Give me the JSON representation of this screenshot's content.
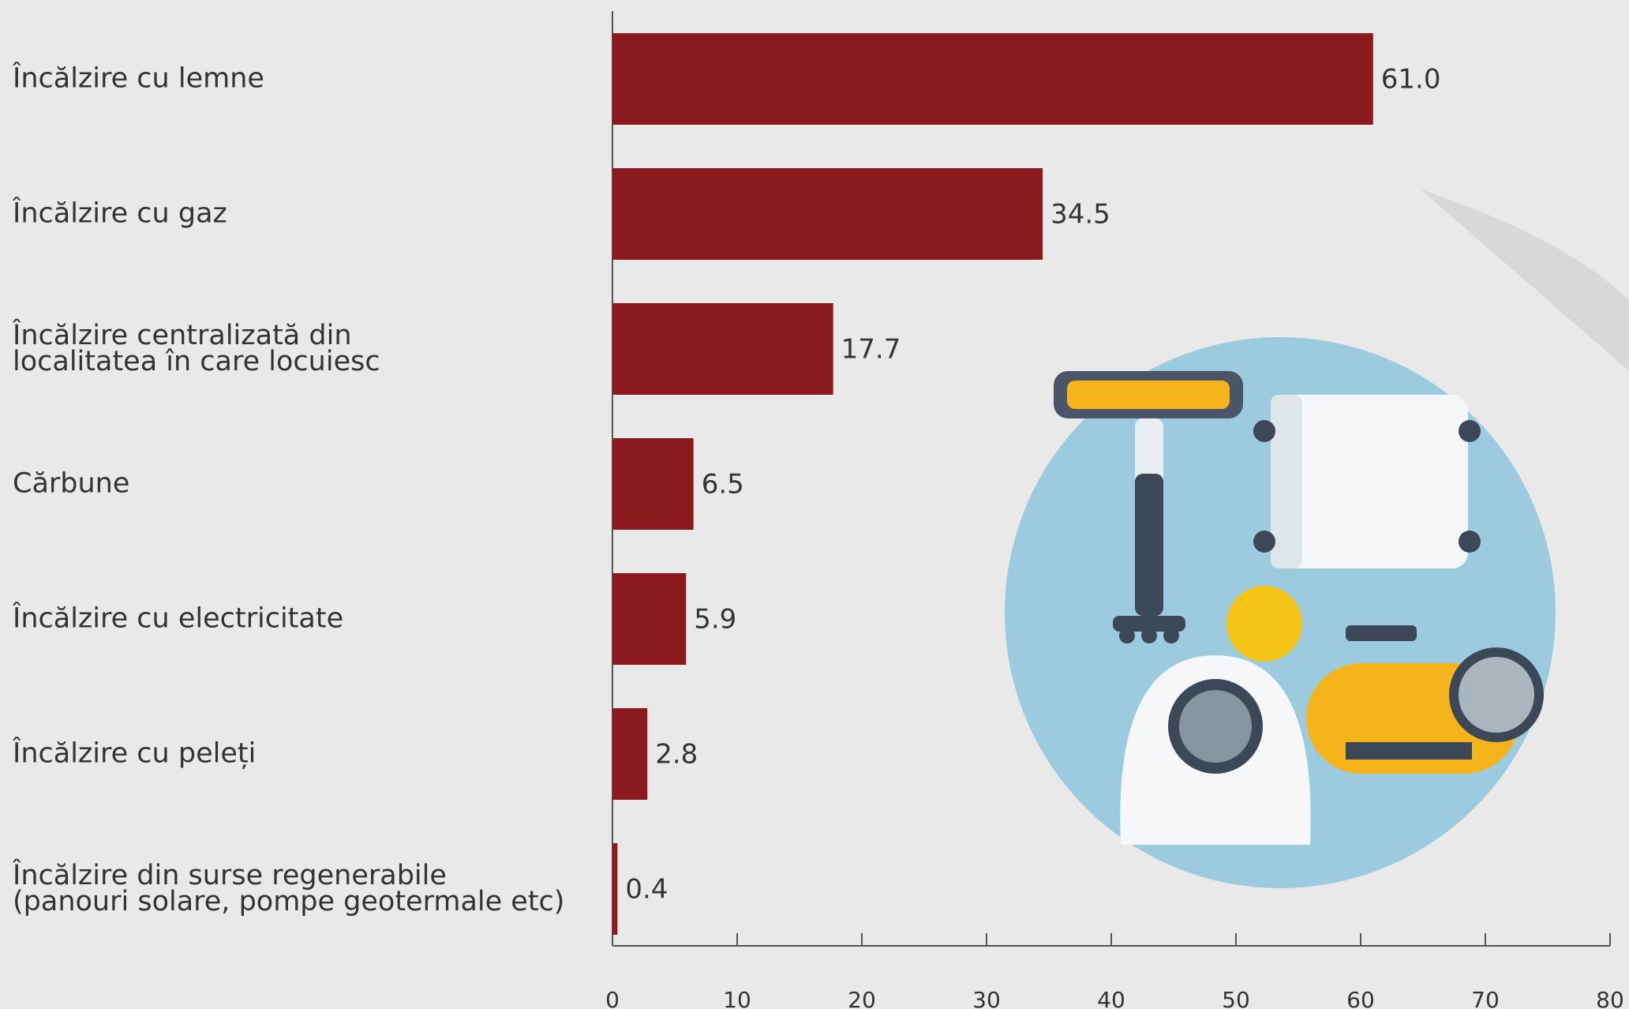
{
  "chart_data": {
    "type": "bar",
    "orientation": "horizontal",
    "categories": [
      "Încălzire cu lemne",
      "Încălzire cu gaz",
      "Încălzire centralizată din\nlocalitatea în care locuiesc",
      "Cărbune",
      "Încălzire cu electricitate",
      "Încălzire cu peleți",
      "Încălzire din surse regenerabile\n(panouri solare, pompe geotermale etc)"
    ],
    "values": [
      61.0,
      34.5,
      17.7,
      6.5,
      5.9,
      2.8,
      0.4
    ],
    "value_labels": [
      "61.0",
      "34.5",
      "17.7",
      "6.5",
      "5.9",
      "2.8",
      "0.4"
    ],
    "color": "#8b1a1e",
    "xlim": [
      0,
      80
    ],
    "xticks": [
      0,
      10,
      20,
      30,
      40,
      50,
      60,
      70,
      80
    ]
  }
}
